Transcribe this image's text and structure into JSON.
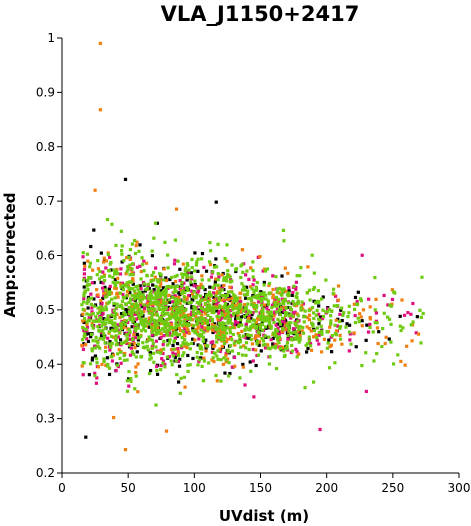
{
  "chart_data": {
    "type": "scatter",
    "title": "VLA_J1150+2417",
    "xlabel": "UVdist (m)",
    "ylabel": "Amp:corrected",
    "xlim": [
      0,
      300
    ],
    "ylim": [
      0.2,
      1.0
    ],
    "xticks": [
      "0",
      "50",
      "100",
      "150",
      "200",
      "250",
      "300"
    ],
    "yticks": [
      "0.2",
      "0.3",
      "0.4",
      "0.5",
      "0.6",
      "0.7",
      "0.8",
      "0.9",
      "1"
    ],
    "grid": false,
    "legend": "none",
    "series_colors": [
      "#000000",
      "#e0117f",
      "#f07f10",
      "#6fcb10"
    ],
    "cloud": {
      "x_range": [
        15,
        275
      ],
      "amp_center": 0.49,
      "points_per_series": [
        420,
        420,
        420,
        1300
      ]
    },
    "outliers": [
      {
        "x": 29,
        "y": 0.99,
        "series": 2
      },
      {
        "x": 29,
        "y": 0.868,
        "series": 2
      },
      {
        "x": 39,
        "y": 0.302,
        "series": 2
      },
      {
        "x": 48,
        "y": 0.243,
        "series": 2
      },
      {
        "x": 79,
        "y": 0.277,
        "series": 2
      },
      {
        "x": 71,
        "y": 0.325,
        "series": 3
      },
      {
        "x": 48,
        "y": 0.74,
        "series": 0
      },
      {
        "x": 25,
        "y": 0.72,
        "series": 2
      },
      {
        "x": 230,
        "y": 0.35,
        "series": 1
      },
      {
        "x": 145,
        "y": 0.34,
        "series": 1
      },
      {
        "x": 93,
        "y": 0.358,
        "series": 2
      },
      {
        "x": 272,
        "y": 0.56,
        "series": 3
      },
      {
        "x": 195,
        "y": 0.28,
        "series": 1
      }
    ]
  }
}
